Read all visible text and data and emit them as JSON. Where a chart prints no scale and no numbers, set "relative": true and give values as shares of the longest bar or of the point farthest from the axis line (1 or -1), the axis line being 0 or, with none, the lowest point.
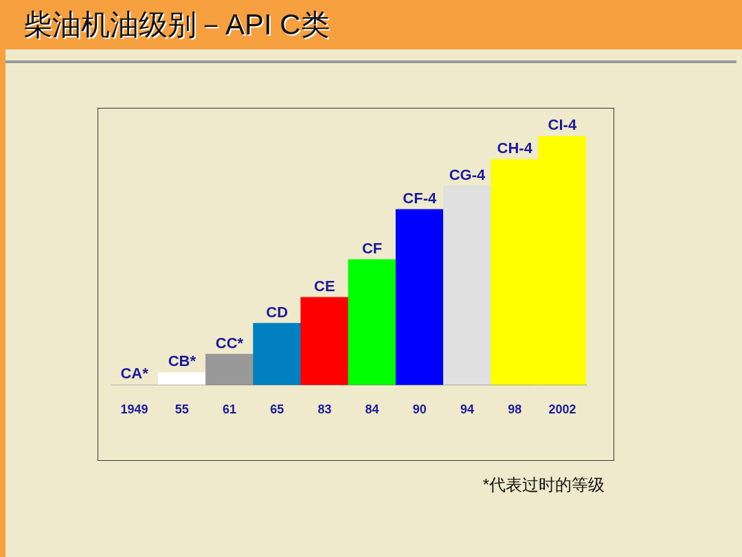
{
  "chart_data": {
    "type": "bar",
    "title": "柴油机油级别－API C类",
    "relative": true,
    "categories": [
      "1949",
      "55",
      "61",
      "65",
      "83",
      "84",
      "90",
      "94",
      "98",
      "2002"
    ],
    "values": [
      0,
      0.05,
      0.124,
      0.248,
      0.352,
      0.504,
      0.705,
      0.8,
      0.906,
      1
    ],
    "colors": [
      "#ffffff",
      "#ffffff",
      "#999999",
      "#0080c0",
      "#ff0000",
      "#00ff00",
      "#0000ff",
      "#e0e0e0",
      "#ffff00",
      "#ffff00"
    ],
    "annotations": [
      {
        "text": "CA*",
        "x": "1949",
        "y": 0
      },
      {
        "text": "CB*",
        "x": "55",
        "y": 0.05
      },
      {
        "text": "CC*",
        "x": "61",
        "y": 0.124
      },
      {
        "text": "CD",
        "x": "65",
        "y": 0.248
      },
      {
        "text": "CE",
        "x": "83",
        "y": 0.352
      },
      {
        "text": "CF",
        "x": "84",
        "y": 0.504
      },
      {
        "text": "CF-4",
        "x": "90",
        "y": 0.705
      },
      {
        "text": "CG-4",
        "x": "94",
        "y": 0.8
      },
      {
        "text": "CH-4",
        "x": "98",
        "y": 0.906
      },
      {
        "text": "CI-4",
        "x": "2002",
        "y": 1
      },
      "*代表过时的等级"
    ]
  }
}
